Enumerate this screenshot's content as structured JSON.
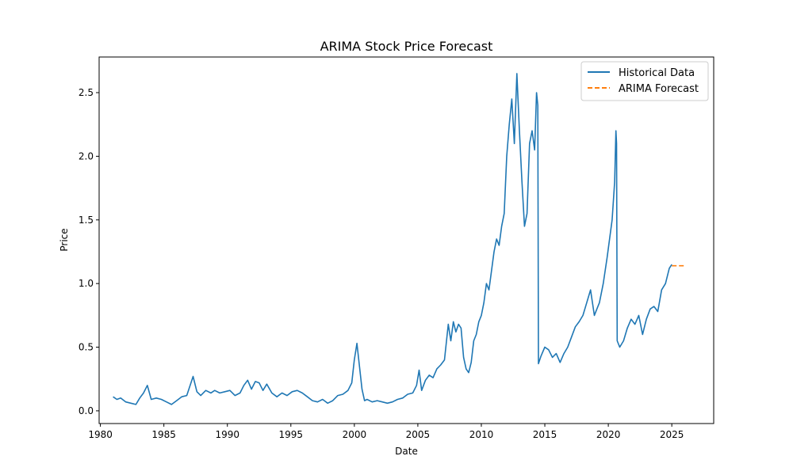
{
  "chart_data": {
    "type": "line",
    "title": "ARIMA Stock Price Forecast",
    "xlabel": "Date",
    "ylabel": "Price",
    "xlim": [
      1979.9,
      2028.3
    ],
    "ylim": [
      -0.1,
      2.78
    ],
    "x_ticks": [
      1980,
      1985,
      1990,
      1995,
      2000,
      2005,
      2010,
      2015,
      2020,
      2025
    ],
    "x_tick_labels": [
      "1980",
      "1985",
      "1990",
      "1995",
      "2000",
      "2005",
      "2010",
      "2015",
      "2020",
      "2025"
    ],
    "y_ticks": [
      0.0,
      0.5,
      1.0,
      1.5,
      2.0,
      2.5
    ],
    "y_tick_labels": [
      "0.0",
      "0.5",
      "1.0",
      "1.5",
      "2.0",
      "2.5"
    ],
    "grid": false,
    "legend_position": "top-right",
    "series": [
      {
        "name": "Historical Data",
        "color": "#1f77b4",
        "style": "solid",
        "x": [
          1981.0,
          1981.3,
          1981.6,
          1982.0,
          1982.4,
          1982.8,
          1983.1,
          1983.4,
          1983.7,
          1984.0,
          1984.4,
          1984.8,
          1985.2,
          1985.6,
          1986.0,
          1986.4,
          1986.8,
          1987.0,
          1987.3,
          1987.6,
          1987.9,
          1988.3,
          1988.7,
          1989.0,
          1989.4,
          1989.8,
          1990.2,
          1990.6,
          1991.0,
          1991.3,
          1991.6,
          1991.9,
          1992.2,
          1992.5,
          1992.8,
          1993.1,
          1993.5,
          1993.9,
          1994.3,
          1994.7,
          1995.1,
          1995.5,
          1995.9,
          1996.3,
          1996.7,
          1997.1,
          1997.5,
          1997.9,
          1998.3,
          1998.7,
          1999.1,
          1999.5,
          1999.8,
          2000.0,
          2000.2,
          2000.4,
          2000.6,
          2000.8,
          2001.0,
          2001.4,
          2001.8,
          2002.2,
          2002.6,
          2003.0,
          2003.4,
          2003.8,
          2004.2,
          2004.6,
          2004.9,
          2005.1,
          2005.3,
          2005.6,
          2005.9,
          2006.2,
          2006.5,
          2006.8,
          2007.1,
          2007.4,
          2007.6,
          2007.8,
          2008.0,
          2008.2,
          2008.4,
          2008.6,
          2008.8,
          2009.0,
          2009.2,
          2009.4,
          2009.6,
          2009.8,
          2010.0,
          2010.2,
          2010.4,
          2010.6,
          2010.8,
          2011.0,
          2011.2,
          2011.4,
          2011.6,
          2011.8,
          2012.0,
          2012.2,
          2012.4,
          2012.6,
          2012.8,
          2013.0,
          2013.2,
          2013.4,
          2013.6,
          2013.8,
          2014.0,
          2014.2,
          2014.35,
          2014.45,
          2014.5,
          2014.7,
          2015.0,
          2015.3,
          2015.6,
          2015.9,
          2016.2,
          2016.5,
          2016.8,
          2017.1,
          2017.4,
          2017.7,
          2018.0,
          2018.3,
          2018.6,
          2018.9,
          2019.1,
          2019.3,
          2019.6,
          2019.9,
          2020.1,
          2020.3,
          2020.5,
          2020.6,
          2020.65,
          2020.7,
          2020.9,
          2021.2,
          2021.5,
          2021.8,
          2022.1,
          2022.4,
          2022.7,
          2023.0,
          2023.3,
          2023.6,
          2023.9,
          2024.2,
          2024.5,
          2024.8,
          2025.0
        ],
        "y": [
          0.11,
          0.09,
          0.1,
          0.07,
          0.06,
          0.05,
          0.1,
          0.14,
          0.2,
          0.09,
          0.1,
          0.09,
          0.07,
          0.05,
          0.08,
          0.11,
          0.12,
          0.18,
          0.27,
          0.15,
          0.12,
          0.16,
          0.14,
          0.16,
          0.14,
          0.15,
          0.16,
          0.12,
          0.14,
          0.2,
          0.24,
          0.17,
          0.23,
          0.22,
          0.16,
          0.21,
          0.14,
          0.11,
          0.14,
          0.12,
          0.15,
          0.16,
          0.14,
          0.11,
          0.08,
          0.07,
          0.09,
          0.06,
          0.08,
          0.12,
          0.13,
          0.16,
          0.22,
          0.4,
          0.53,
          0.35,
          0.17,
          0.08,
          0.09,
          0.07,
          0.08,
          0.07,
          0.06,
          0.07,
          0.09,
          0.1,
          0.13,
          0.14,
          0.2,
          0.32,
          0.16,
          0.24,
          0.28,
          0.26,
          0.33,
          0.36,
          0.4,
          0.68,
          0.55,
          0.7,
          0.62,
          0.68,
          0.65,
          0.42,
          0.33,
          0.3,
          0.38,
          0.55,
          0.6,
          0.7,
          0.75,
          0.85,
          1.0,
          0.95,
          1.1,
          1.25,
          1.35,
          1.3,
          1.45,
          1.55,
          2.0,
          2.25,
          2.45,
          2.1,
          2.65,
          2.2,
          1.8,
          1.45,
          1.55,
          2.1,
          2.2,
          2.05,
          2.5,
          2.4,
          0.37,
          0.43,
          0.5,
          0.48,
          0.42,
          0.45,
          0.38,
          0.45,
          0.5,
          0.58,
          0.66,
          0.7,
          0.75,
          0.85,
          0.95,
          0.75,
          0.8,
          0.85,
          1.0,
          1.2,
          1.35,
          1.5,
          1.8,
          2.2,
          2.1,
          0.55,
          0.5,
          0.55,
          0.65,
          0.72,
          0.68,
          0.75,
          0.6,
          0.72,
          0.8,
          0.82,
          0.78,
          0.95,
          1.0,
          1.12,
          1.15
        ]
      },
      {
        "name": "ARIMA Forecast",
        "color": "#ff7f0e",
        "style": "dashed",
        "x": [
          2025.0,
          2025.25,
          2025.5,
          2025.75,
          2026.0
        ],
        "y": [
          1.14,
          1.14,
          1.14,
          1.14,
          1.14
        ]
      }
    ]
  }
}
